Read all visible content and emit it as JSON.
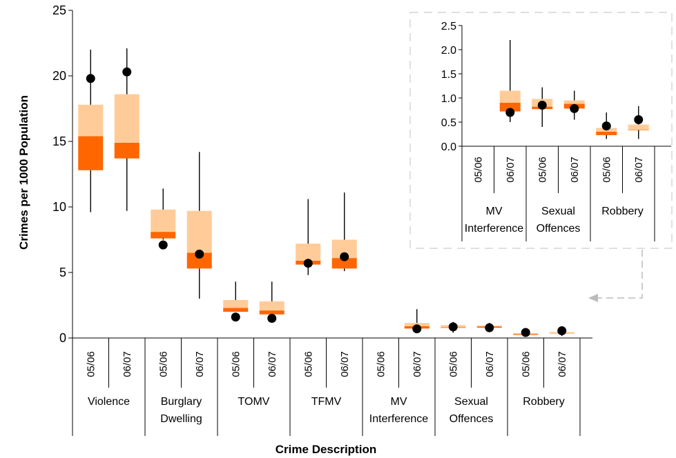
{
  "chart_data": [
    {
      "type": "boxplot",
      "xlabel": "Crime Description",
      "ylabel": "Crimes per 1000 Population",
      "ylim": [
        0,
        25
      ],
      "yticks": [
        0,
        5,
        10,
        15,
        20,
        25
      ],
      "categories": [
        "Violence",
        "Burglary Dwelling",
        "TOMV",
        "TFMV",
        "MV Interference",
        "Sexual Offences",
        "Robbery"
      ],
      "category_lines": [
        [
          "Violence"
        ],
        [
          "Burglary",
          "Dwelling"
        ],
        [
          "TOMV"
        ],
        [
          "TFMV"
        ],
        [
          "MV",
          "Interference"
        ],
        [
          "Sexual",
          "Offences"
        ],
        [
          "Robbery"
        ]
      ],
      "periods": [
        "05/06",
        "06/07"
      ],
      "series": [
        {
          "category": "Violence",
          "period": "05/06",
          "min": 9.6,
          "q1": 12.8,
          "median": 15.4,
          "q3": 17.8,
          "max": 22.0,
          "point": 19.8
        },
        {
          "category": "Violence",
          "period": "06/07",
          "min": 9.7,
          "q1": 13.7,
          "median": 14.9,
          "q3": 18.6,
          "max": 22.1,
          "point": 20.3
        },
        {
          "category": "Burglary Dwelling",
          "period": "05/06",
          "min": 7.5,
          "q1": 7.6,
          "median": 8.1,
          "q3": 9.8,
          "max": 11.4,
          "point": 7.1
        },
        {
          "category": "Burglary Dwelling",
          "period": "06/07",
          "min": 3.0,
          "q1": 5.3,
          "median": 6.5,
          "q3": 9.7,
          "max": 14.2,
          "point": 6.4
        },
        {
          "category": "TOMV",
          "period": "05/06",
          "min": 2.0,
          "q1": 2.0,
          "median": 2.3,
          "q3": 2.9,
          "max": 4.3,
          "point": 1.6
        },
        {
          "category": "TOMV",
          "period": "06/07",
          "min": 1.8,
          "q1": 1.8,
          "median": 2.1,
          "q3": 2.8,
          "max": 4.3,
          "point": 1.5
        },
        {
          "category": "TFMV",
          "period": "05/06",
          "min": 4.8,
          "q1": 5.6,
          "median": 5.9,
          "q3": 7.2,
          "max": 10.6,
          "point": 5.7
        },
        {
          "category": "TFMV",
          "period": "06/07",
          "min": 5.1,
          "q1": 5.3,
          "median": 6.1,
          "q3": 7.5,
          "max": 11.1,
          "point": 6.2
        },
        {
          "category": "MV Interference",
          "period": "05/06",
          "min": null,
          "q1": null,
          "median": null,
          "q3": null,
          "max": null,
          "point": null
        },
        {
          "category": "MV Interference",
          "period": "06/07",
          "min": 0.5,
          "q1": 0.72,
          "median": 0.9,
          "q3": 1.15,
          "max": 2.2,
          "point": 0.7
        },
        {
          "category": "Sexual Offences",
          "period": "05/06",
          "min": 0.4,
          "q1": 0.77,
          "median": 0.82,
          "q3": 0.98,
          "max": 1.22,
          "point": 0.85
        },
        {
          "category": "Sexual Offences",
          "period": "06/07",
          "min": 0.55,
          "q1": 0.78,
          "median": 0.88,
          "q3": 0.95,
          "max": 1.15,
          "point": 0.78
        },
        {
          "category": "Robbery",
          "period": "05/06",
          "min": 0.15,
          "q1": 0.23,
          "median": 0.3,
          "q3": 0.38,
          "max": 0.7,
          "point": 0.42
        },
        {
          "category": "Robbery",
          "period": "06/07",
          "min": 0.15,
          "q1": 0.33,
          "median": 0.34,
          "q3": 0.45,
          "max": 0.83,
          "point": 0.55
        }
      ],
      "colors": {
        "lower_box": "#FF6600",
        "upper_box": "#FFCC99",
        "point": "#000000"
      }
    },
    {
      "type": "boxplot",
      "inset": true,
      "ylim": [
        0,
        2.5
      ],
      "yticks": [
        "0.0",
        "0.5",
        "1.0",
        "1.5",
        "2.0",
        "2.5"
      ],
      "categories": [
        "MV Interference",
        "Sexual Offences",
        "Robbery"
      ],
      "category_lines": [
        [
          "MV",
          "Interference"
        ],
        [
          "Sexual",
          "Offences"
        ],
        [
          "Robbery"
        ]
      ],
      "periods": [
        "05/06",
        "06/07"
      ]
    }
  ]
}
